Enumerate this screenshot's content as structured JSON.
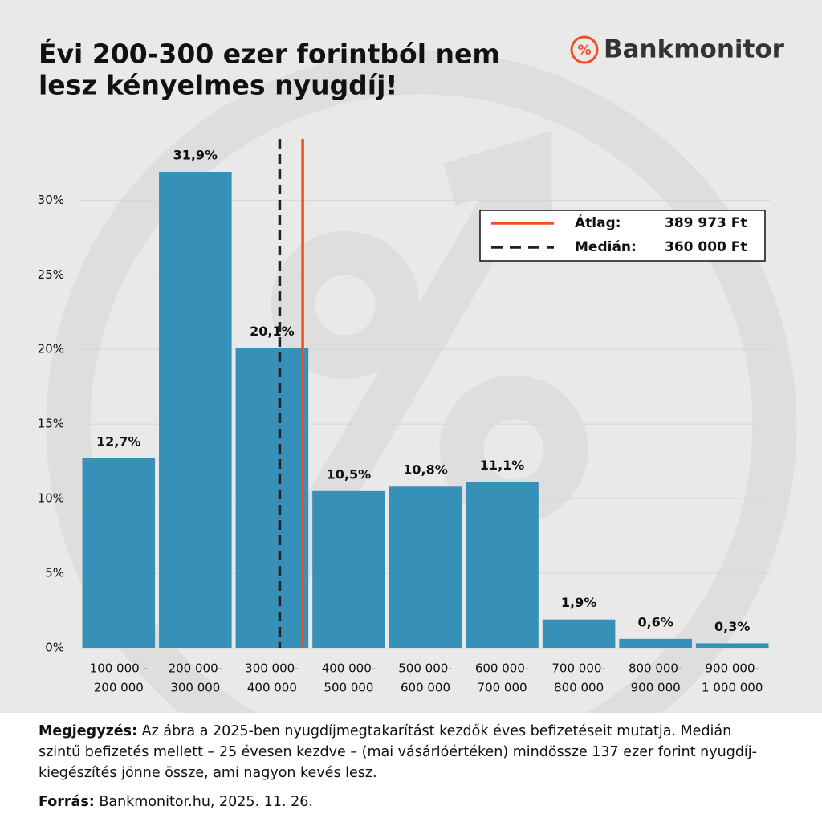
{
  "chart_data": {
    "type": "bar",
    "title": [
      "Évi 200-300 ezer forintból nem",
      "lesz kényelmes nyugdíj!"
    ],
    "logo_icon": "%",
    "logo": "Bankmonitor",
    "categories": [
      [
        "100 000 -",
        "200 000"
      ],
      [
        "200 000-",
        "300 000"
      ],
      [
        "300 000-",
        "400 000"
      ],
      [
        "400 000-",
        "500 000"
      ],
      [
        "500 000-",
        "600 000"
      ],
      [
        "600 000-",
        "700 000"
      ],
      [
        "700 000-",
        "800 000"
      ],
      [
        "800 000-",
        "900 000"
      ],
      [
        "900 000-",
        "1 000 000"
      ]
    ],
    "values": [
      12.7,
      31.9,
      20.1,
      10.5,
      10.8,
      11.1,
      1.9,
      0.6,
      0.3
    ],
    "value_labels": [
      "12,7%",
      "31,9%",
      "20,1%",
      "10,5%",
      "10,8%",
      "11,1%",
      "1,9%",
      "0,6%",
      "0,3%"
    ],
    "color": "#3690b8",
    "xlim": [
      100000,
      1000000
    ],
    "ylim": [
      0,
      34
    ],
    "yticks": [
      {
        "value": 0,
        "label": "0%"
      },
      {
        "value": 5,
        "label": "5%"
      },
      {
        "value": 10,
        "label": "10%"
      },
      {
        "value": 15,
        "label": "15%"
      },
      {
        "value": 20,
        "label": "20%"
      },
      {
        "value": 25,
        "label": "25%"
      },
      {
        "value": 30,
        "label": "30%"
      }
    ],
    "grid": true,
    "legend_position": "upper right",
    "reference_lines": [
      {
        "name": "Átlag:",
        "value": 389973,
        "value_label": "389 973 Ft",
        "color": "#f04e23",
        "style": "solid"
      },
      {
        "name": "Medián:",
        "value": 360000,
        "value_label": "360 000 Ft",
        "color": "#222222",
        "style": "dashed"
      }
    ],
    "note_label": "Megjegyzés:",
    "note": "Az ábra a 2025-ben nyugdíjmegtakarítást kezdők éves befizetéseit mutatja. Medián szintű befizetés mellett – 25 évesen kezdve – (mai vásárlóértéken) mindössze 137 ezer forint nyugdíj-kiegészítés jönne össze, ami nagyon kevés lesz.",
    "source_label": "Forrás:",
    "source": "Bankmonitor.hu, 2025. 11. 26."
  }
}
